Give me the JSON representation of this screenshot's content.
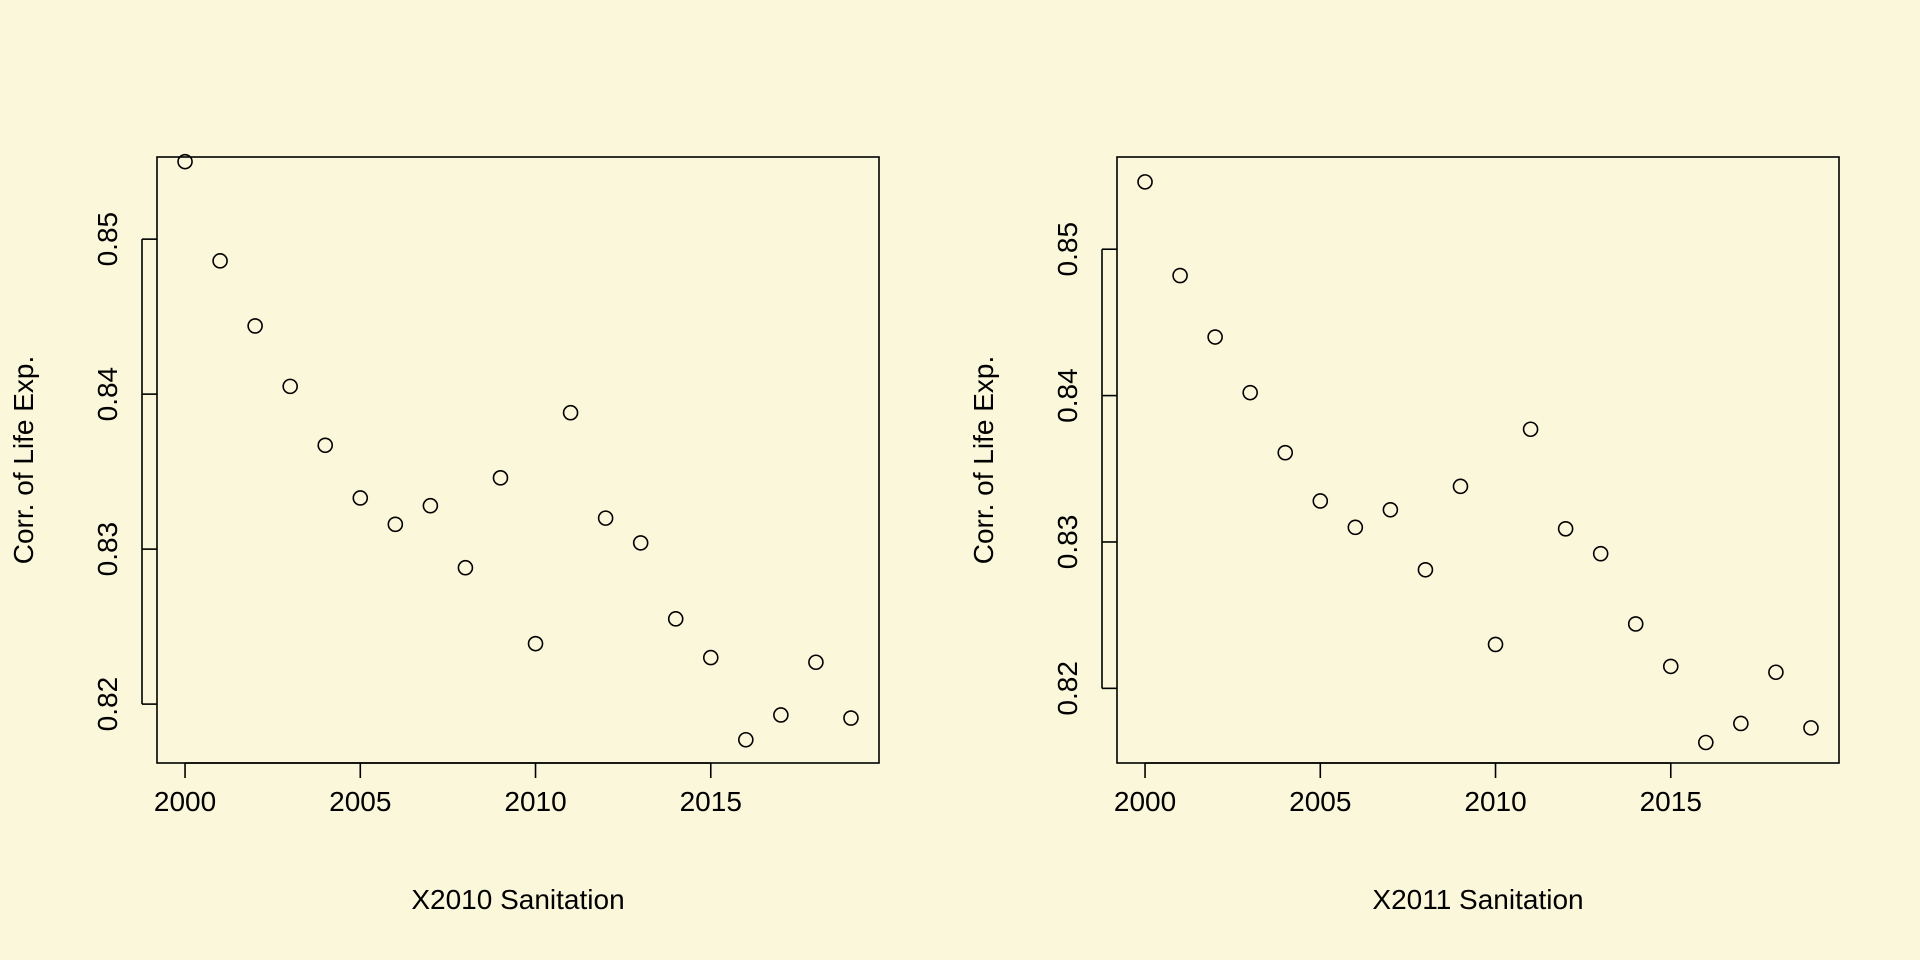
{
  "background": "#FAF7DA",
  "chart_data": [
    {
      "type": "scatter",
      "title": "",
      "xlabel": "X2010 Sanitation",
      "ylabel": "Corr. of Life Exp.",
      "xlim": [
        1999.2,
        2019.8
      ],
      "ylim": [
        0.8162,
        0.8553
      ],
      "xticks": [
        "2000",
        "2005",
        "2010",
        "2015"
      ],
      "yticks": [
        "0.82",
        "0.83",
        "0.84",
        "0.85"
      ],
      "grid": false,
      "marker": "open-circle",
      "x": [
        2000,
        2001,
        2002,
        2003,
        2004,
        2005,
        2006,
        2007,
        2008,
        2009,
        2010,
        2011,
        2012,
        2013,
        2014,
        2015,
        2016,
        2017,
        2018,
        2019
      ],
      "y": [
        0.855,
        0.8486,
        0.8444,
        0.8405,
        0.8367,
        0.8333,
        0.8316,
        0.8328,
        0.8288,
        0.8346,
        0.8239,
        0.8388,
        0.832,
        0.8304,
        0.8255,
        0.823,
        0.8177,
        0.8193,
        0.8227,
        0.8191
      ]
    },
    {
      "type": "scatter",
      "title": "",
      "xlabel": "X2011 Sanitation",
      "ylabel": "Corr. of Life Exp.",
      "xlim": [
        1999.2,
        2019.8
      ],
      "ylim": [
        0.8149,
        0.8563
      ],
      "xticks": [
        "2000",
        "2005",
        "2010",
        "2015"
      ],
      "yticks": [
        "0.82",
        "0.83",
        "0.84",
        "0.85"
      ],
      "grid": false,
      "marker": "open-circle",
      "x": [
        2000,
        2001,
        2002,
        2003,
        2004,
        2005,
        2006,
        2007,
        2008,
        2009,
        2010,
        2011,
        2012,
        2013,
        2014,
        2015,
        2016,
        2017,
        2018,
        2019
      ],
      "y": [
        0.8546,
        0.8482,
        0.844,
        0.8402,
        0.8361,
        0.8328,
        0.831,
        0.8322,
        0.8281,
        0.8338,
        0.823,
        0.8377,
        0.8309,
        0.8292,
        0.8244,
        0.8215,
        0.8163,
        0.8176,
        0.8211,
        0.8173
      ]
    }
  ]
}
